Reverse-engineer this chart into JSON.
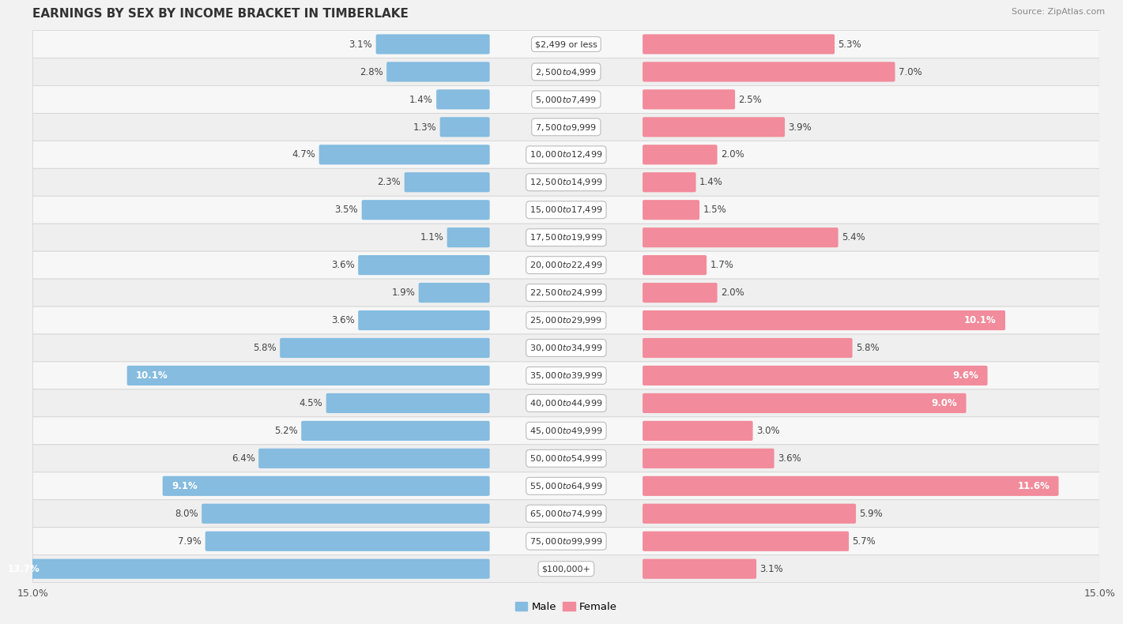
{
  "title": "EARNINGS BY SEX BY INCOME BRACKET IN TIMBERLAKE",
  "source": "Source: ZipAtlas.com",
  "categories": [
    "$2,499 or less",
    "$2,500 to $4,999",
    "$5,000 to $7,499",
    "$7,500 to $9,999",
    "$10,000 to $12,499",
    "$12,500 to $14,999",
    "$15,000 to $17,499",
    "$17,500 to $19,999",
    "$20,000 to $22,499",
    "$22,500 to $24,999",
    "$25,000 to $29,999",
    "$30,000 to $34,999",
    "$35,000 to $39,999",
    "$40,000 to $44,999",
    "$45,000 to $49,999",
    "$50,000 to $54,999",
    "$55,000 to $64,999",
    "$65,000 to $74,999",
    "$75,000 to $99,999",
    "$100,000+"
  ],
  "male_values": [
    3.1,
    2.8,
    1.4,
    1.3,
    4.7,
    2.3,
    3.5,
    1.1,
    3.6,
    1.9,
    3.6,
    5.8,
    10.1,
    4.5,
    5.2,
    6.4,
    9.1,
    8.0,
    7.9,
    13.7
  ],
  "female_values": [
    5.3,
    7.0,
    2.5,
    3.9,
    2.0,
    1.4,
    1.5,
    5.4,
    1.7,
    2.0,
    10.1,
    5.8,
    9.6,
    9.0,
    3.0,
    3.6,
    11.6,
    5.9,
    5.7,
    3.1
  ],
  "male_color": "#85BCE0",
  "female_color": "#F28B9B",
  "bar_height": 0.62,
  "xlim": 15.0,
  "row_color_even": "#f7f7f7",
  "row_color_odd": "#efefef",
  "label_fontsize": 8.5,
  "title_fontsize": 11,
  "source_fontsize": 8,
  "axis_tick_fontsize": 9,
  "cat_label_fontsize": 8,
  "inside_label_threshold": 9.0,
  "fig_bg": "#f2f2f2"
}
